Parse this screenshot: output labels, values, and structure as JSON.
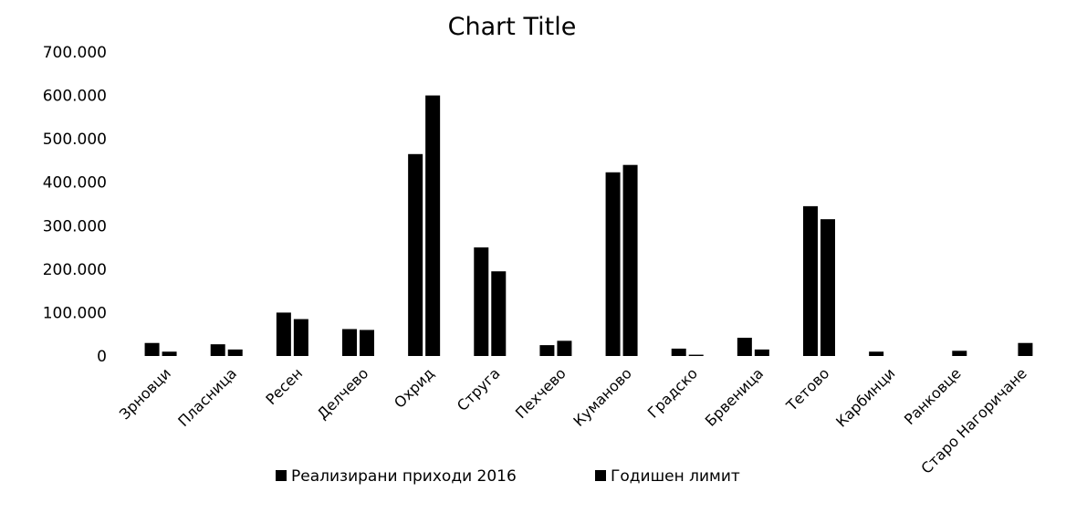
{
  "chart_data": {
    "type": "bar",
    "title": "Chart Title",
    "xlabel": "",
    "ylabel": "",
    "ylim": [
      0,
      700000
    ],
    "y_ticks": [
      "0",
      "100.000",
      "200.000",
      "300.000",
      "400.000",
      "500.000",
      "600.000",
      "700.000"
    ],
    "grid": false,
    "legend_position": "bottom",
    "categories": [
      "Зрновци",
      "Пласница",
      "Ресен",
      "Делчево",
      "Охрид",
      "Струга",
      "Пехчево",
      "Куманово",
      "Градско",
      "Брвеница",
      "Тетово",
      "Карбинци",
      "Ранковце",
      "Старо Нагоричане"
    ],
    "series": [
      {
        "name": "Реализирани приходи 2016",
        "color": "#000000",
        "values": [
          30000,
          27000,
          100000,
          62000,
          465000,
          250000,
          25000,
          423000,
          17000,
          42000,
          345000,
          10000,
          0,
          0
        ]
      },
      {
        "name": "Годишен лимит",
        "color": "#000000",
        "values": [
          10000,
          15000,
          85000,
          60000,
          600000,
          195000,
          35000,
          440000,
          3000,
          15000,
          315000,
          0,
          12000,
          30000
        ]
      }
    ]
  }
}
